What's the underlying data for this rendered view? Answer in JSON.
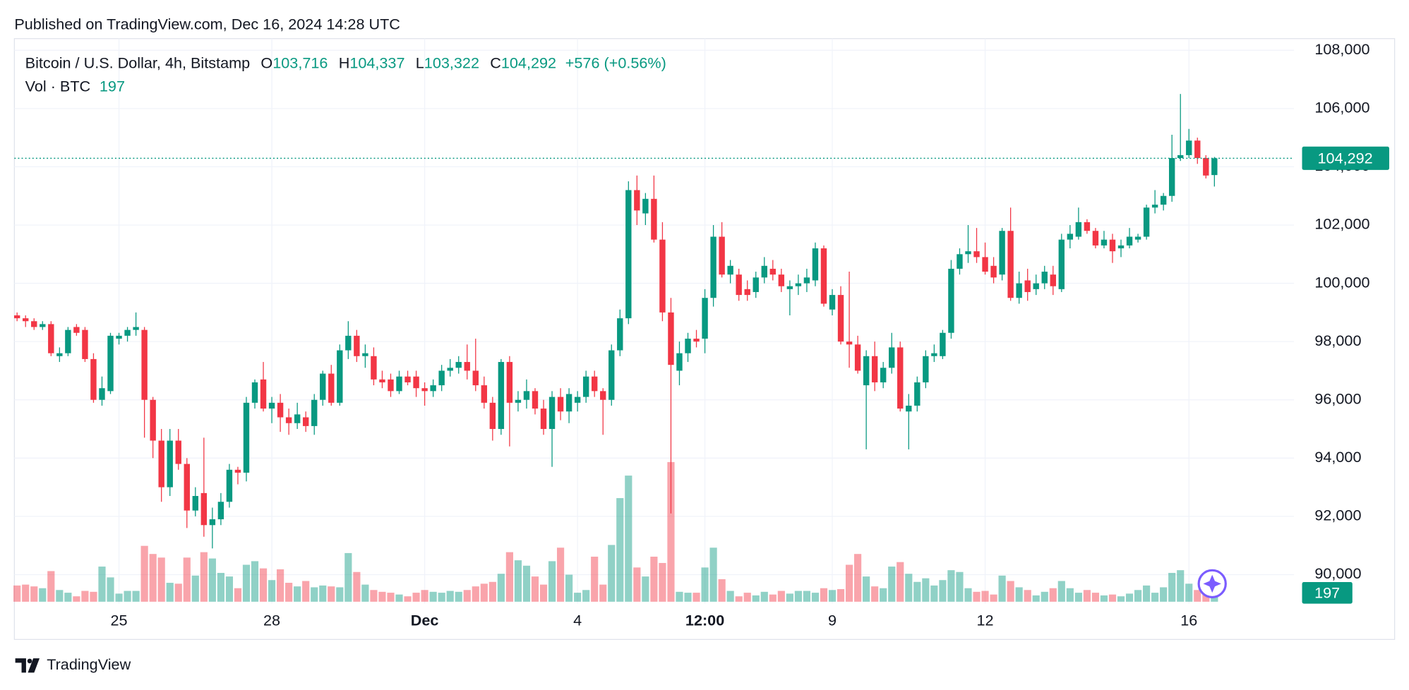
{
  "header": "Published on TradingView.com, Dec 16, 2024 14:28 UTC",
  "brand": "TradingView",
  "chart_data": {
    "type": "candlestick",
    "title": "Bitcoin / U.S. Dollar, 4h, Bitstamp",
    "legend": [
      {
        "label": "O",
        "value": "103,716"
      },
      {
        "label": "H",
        "value": "104,337"
      },
      {
        "label": "L",
        "value": "103,322"
      },
      {
        "label": "C",
        "value": "104,292"
      }
    ],
    "change": "+576 (+0.56%)",
    "volume_title": "Vol · BTC",
    "up_color": "#089981",
    "down_color": "#f23645",
    "ylim": [
      89070,
      108400
    ],
    "yticks": [
      {
        "value": 90000,
        "label": "90,000"
      },
      {
        "value": 92000,
        "label": "92,000"
      },
      {
        "value": 94000,
        "label": "94,000"
      },
      {
        "value": 96000,
        "label": "96,000"
      },
      {
        "value": 98000,
        "label": "98,000"
      },
      {
        "value": 100000,
        "label": "100,000"
      },
      {
        "value": 102000,
        "label": "102,000"
      },
      {
        "value": 104000,
        "label": "104,000"
      },
      {
        "value": 106000,
        "label": "106,000"
      },
      {
        "value": 108000,
        "label": "108,000"
      }
    ],
    "xticks": [
      {
        "value": 12,
        "label": "25"
      },
      {
        "value": 30,
        "label": "28"
      },
      {
        "value": 48,
        "label": "Dec"
      },
      {
        "value": 66,
        "label": "4"
      },
      {
        "value": 81,
        "label": "12:00"
      },
      {
        "value": 96,
        "label": "9"
      },
      {
        "value": 114,
        "label": "12"
      },
      {
        "value": 138,
        "label": "16"
      }
    ],
    "grid": true,
    "vlim": [
      0,
      12500
    ],
    "ohlc": [
      [
        98900,
        99000,
        98700,
        98800
      ],
      [
        98800,
        98900,
        98500,
        98700
      ],
      [
        98700,
        98800,
        98400,
        98500
      ],
      [
        98500,
        98700,
        98400,
        98600
      ],
      [
        98600,
        98700,
        97500,
        97600
      ],
      [
        97500,
        97800,
        97300,
        97600
      ],
      [
        97600,
        98500,
        97500,
        98400
      ],
      [
        98500,
        98600,
        98200,
        98300
      ],
      [
        98400,
        98500,
        97300,
        97400
      ],
      [
        97400,
        97600,
        95900,
        96000
      ],
      [
        96000,
        96800,
        95800,
        96400
      ],
      [
        96300,
        98300,
        96200,
        98200
      ],
      [
        98100,
        98300,
        97900,
        98200
      ],
      [
        98200,
        98500,
        98000,
        98400
      ],
      [
        98400,
        99000,
        98200,
        98500
      ],
      [
        98400,
        98500,
        94700,
        96000
      ],
      [
        96000,
        96100,
        94000,
        94600
      ],
      [
        94600,
        95000,
        92500,
        93000
      ],
      [
        93000,
        95000,
        92700,
        94600
      ],
      [
        94600,
        95000,
        93600,
        93800
      ],
      [
        93800,
        94000,
        91600,
        92200
      ],
      [
        92200,
        93000,
        92000,
        92700
      ],
      [
        92800,
        94700,
        91300,
        91700
      ],
      [
        91700,
        92300,
        90900,
        91900
      ],
      [
        91900,
        92800,
        91700,
        92500
      ],
      [
        92500,
        93800,
        92300,
        93600
      ],
      [
        93600,
        93700,
        93100,
        93500
      ],
      [
        93500,
        96100,
        93200,
        95900
      ],
      [
        95900,
        96700,
        95700,
        96600
      ],
      [
        96700,
        97300,
        95600,
        95700
      ],
      [
        95700,
        96100,
        95200,
        95900
      ],
      [
        95900,
        96200,
        94900,
        95400
      ],
      [
        95400,
        95700,
        94800,
        95200
      ],
      [
        95200,
        95900,
        95000,
        95500
      ],
      [
        95400,
        95600,
        94900,
        95100
      ],
      [
        95100,
        96200,
        94800,
        96000
      ],
      [
        96000,
        97000,
        95800,
        96900
      ],
      [
        96900,
        97200,
        95800,
        95900
      ],
      [
        95900,
        97900,
        95800,
        97700
      ],
      [
        97700,
        98700,
        97400,
        98200
      ],
      [
        98200,
        98400,
        97300,
        97500
      ],
      [
        97500,
        97900,
        97100,
        97600
      ],
      [
        97500,
        97800,
        96500,
        96700
      ],
      [
        96700,
        97000,
        96400,
        96600
      ],
      [
        96700,
        96900,
        96100,
        96300
      ],
      [
        96300,
        97000,
        96200,
        96800
      ],
      [
        96800,
        97000,
        96500,
        96600
      ],
      [
        96800,
        97000,
        96100,
        96400
      ],
      [
        96400,
        96600,
        95800,
        96300
      ],
      [
        96300,
        96700,
        96100,
        96500
      ],
      [
        96500,
        97200,
        96300,
        97000
      ],
      [
        97000,
        97400,
        96800,
        97100
      ],
      [
        97100,
        97500,
        96900,
        97300
      ],
      [
        97300,
        97900,
        96700,
        97000
      ],
      [
        97000,
        98100,
        96300,
        96500
      ],
      [
        96500,
        96800,
        95700,
        95900
      ],
      [
        95900,
        96100,
        94600,
        95000
      ],
      [
        95000,
        97400,
        94800,
        97300
      ],
      [
        97300,
        97500,
        94400,
        95900
      ],
      [
        95900,
        96300,
        95600,
        96000
      ],
      [
        96000,
        96700,
        95700,
        96300
      ],
      [
        96300,
        96400,
        95500,
        95700
      ],
      [
        95700,
        96000,
        94800,
        95000
      ],
      [
        95000,
        96300,
        93700,
        96100
      ],
      [
        96100,
        96400,
        95300,
        95600
      ],
      [
        95600,
        96400,
        95200,
        96200
      ],
      [
        95900,
        96300,
        95600,
        96100
      ],
      [
        96100,
        97000,
        95900,
        96800
      ],
      [
        96800,
        97000,
        96100,
        96300
      ],
      [
        96300,
        96400,
        94800,
        96000
      ],
      [
        96000,
        97900,
        95800,
        97700
      ],
      [
        97700,
        99100,
        97500,
        98800
      ],
      [
        98800,
        103500,
        98600,
        103200
      ],
      [
        103200,
        103700,
        102000,
        102500
      ],
      [
        102400,
        103100,
        102000,
        102900
      ],
      [
        102900,
        103700,
        101400,
        101500
      ],
      [
        101500,
        102100,
        98700,
        99000
      ],
      [
        99000,
        99500,
        92100,
        97200
      ],
      [
        97000,
        98000,
        96500,
        97600
      ],
      [
        97600,
        98300,
        97300,
        98100
      ],
      [
        98100,
        98400,
        97800,
        98000
      ],
      [
        98100,
        99800,
        97600,
        99500
      ],
      [
        99500,
        102000,
        99200,
        101600
      ],
      [
        101600,
        102100,
        100200,
        100300
      ],
      [
        100300,
        100800,
        100000,
        100600
      ],
      [
        100300,
        100500,
        99400,
        99600
      ],
      [
        99800,
        100100,
        99400,
        99600
      ],
      [
        99700,
        100400,
        99500,
        100200
      ],
      [
        100200,
        100900,
        100000,
        100600
      ],
      [
        100500,
        100800,
        100100,
        100300
      ],
      [
        100300,
        100500,
        99700,
        99900
      ],
      [
        99800,
        100100,
        98900,
        99900
      ],
      [
        99900,
        100300,
        99600,
        100000
      ],
      [
        100000,
        100500,
        99700,
        100200
      ],
      [
        100100,
        101400,
        99900,
        101200
      ],
      [
        101200,
        101300,
        99200,
        99300
      ],
      [
        99100,
        99800,
        98900,
        99600
      ],
      [
        99600,
        99900,
        97900,
        98000
      ],
      [
        98000,
        100400,
        97100,
        97900
      ],
      [
        97900,
        98200,
        96900,
        97000
      ],
      [
        96500,
        97700,
        94300,
        97500
      ],
      [
        97500,
        98000,
        96300,
        96600
      ],
      [
        96600,
        97300,
        96400,
        97100
      ],
      [
        97100,
        98300,
        96900,
        97800
      ],
      [
        97800,
        98000,
        95600,
        95700
      ],
      [
        95600,
        96200,
        94300,
        95800
      ],
      [
        95800,
        96800,
        95600,
        96600
      ],
      [
        96600,
        97700,
        96400,
        97500
      ],
      [
        97500,
        97900,
        97300,
        97600
      ],
      [
        97500,
        98400,
        97400,
        98300
      ],
      [
        98300,
        100800,
        98100,
        100500
      ],
      [
        100500,
        101200,
        100300,
        101000
      ],
      [
        101000,
        102000,
        100700,
        101100
      ],
      [
        101100,
        101900,
        100700,
        100900
      ],
      [
        100900,
        101400,
        100300,
        100400
      ],
      [
        100600,
        100900,
        100000,
        100200
      ],
      [
        100300,
        101900,
        100100,
        101800
      ],
      [
        101800,
        102600,
        99400,
        99500
      ],
      [
        99500,
        100400,
        99300,
        100000
      ],
      [
        100100,
        100500,
        99400,
        99700
      ],
      [
        99800,
        100300,
        99600,
        100000
      ],
      [
        100000,
        100600,
        99800,
        100400
      ],
      [
        100300,
        100600,
        99600,
        99900
      ],
      [
        99800,
        101700,
        99700,
        101500
      ],
      [
        101500,
        102000,
        101200,
        101700
      ],
      [
        101600,
        102600,
        101500,
        102100
      ],
      [
        102100,
        102200,
        101700,
        101800
      ],
      [
        101800,
        101900,
        101200,
        101300
      ],
      [
        101300,
        101800,
        101200,
        101500
      ],
      [
        101500,
        101700,
        100700,
        101100
      ],
      [
        101200,
        101500,
        100900,
        101300
      ],
      [
        101300,
        101900,
        101200,
        101600
      ],
      [
        101500,
        101700,
        101400,
        101600
      ],
      [
        101600,
        102700,
        101500,
        102600
      ],
      [
        102600,
        103200,
        102400,
        102700
      ],
      [
        102700,
        103100,
        102500,
        103000
      ],
      [
        103000,
        105100,
        102800,
        104300
      ],
      [
        104300,
        106500,
        104200,
        104400
      ],
      [
        104400,
        105300,
        104300,
        104900
      ],
      [
        104900,
        105000,
        104100,
        104300
      ],
      [
        104300,
        104400,
        103600,
        103700
      ],
      [
        103716,
        104337,
        103322,
        104292
      ]
    ],
    "volume": [
      360,
      380,
      340,
      300,
      680,
      260,
      200,
      120,
      240,
      220,
      780,
      540,
      180,
      240,
      240,
      1240,
      1060,
      980,
      420,
      400,
      980,
      580,
      1100,
      960,
      640,
      560,
      300,
      820,
      900,
      740,
      480,
      720,
      420,
      340,
      460,
      320,
      360,
      340,
      320,
      1080,
      660,
      380,
      260,
      220,
      200,
      160,
      120,
      200,
      260,
      220,
      200,
      240,
      220,
      260,
      340,
      400,
      440,
      620,
      1100,
      920,
      800,
      560,
      380,
      900,
      1200,
      600,
      200,
      260,
      1000,
      380,
      1260,
      2300,
      2800,
      760,
      560,
      1000,
      860,
      3100,
      220,
      200,
      200,
      760,
      1200,
      500,
      240,
      120,
      200,
      140,
      220,
      160,
      240,
      180,
      240,
      240,
      200,
      300,
      260,
      280,
      820,
      1060,
      560,
      340,
      300,
      780,
      880,
      620,
      440,
      520,
      360,
      480,
      700,
      660,
      300,
      220,
      240,
      160,
      580,
      460,
      320,
      260,
      140,
      220,
      300,
      460,
      300,
      200,
      260,
      200,
      140,
      160,
      120,
      180,
      260,
      360,
      200,
      320,
      640,
      700,
      400,
      260,
      180,
      197
    ]
  }
}
